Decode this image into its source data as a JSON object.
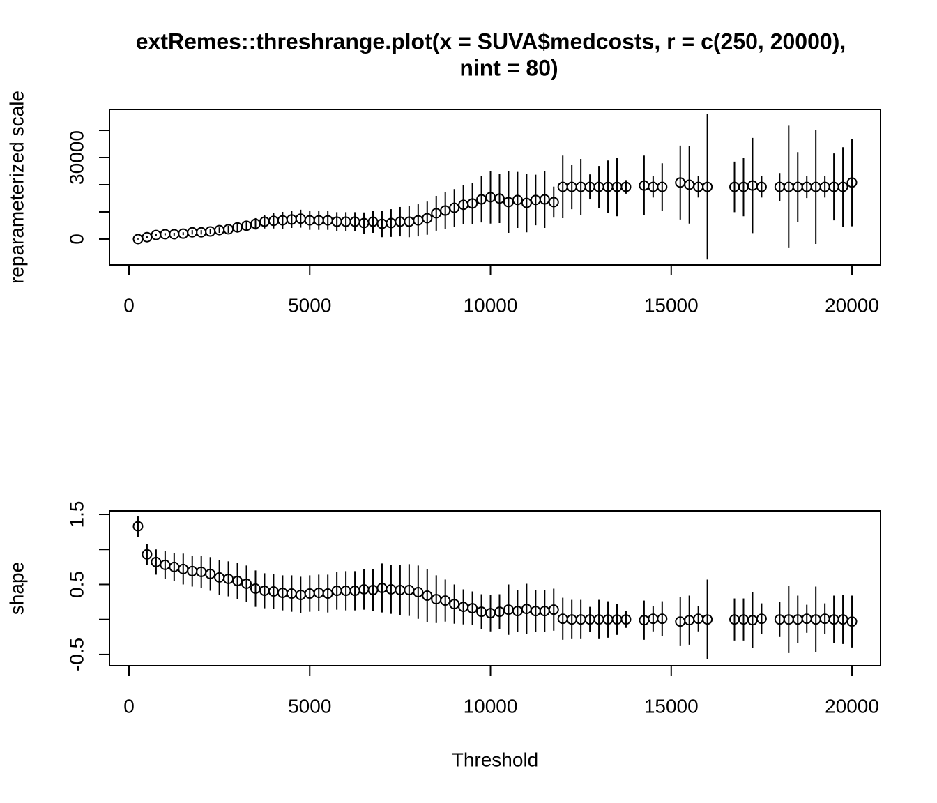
{
  "chart_data": [
    {
      "type": "errorbar",
      "title": [
        "extRemes::threshrange.plot(x = SUVA$medcosts, r = c(250, 20000),",
        "nint = 80)"
      ],
      "ylabel": "reparameterized scale",
      "x": [
        250,
        500,
        750,
        1000,
        1250,
        1500,
        1750,
        2000,
        2250,
        2500,
        2750,
        3000,
        3250,
        3500,
        3750,
        4000,
        4250,
        4500,
        4750,
        5000,
        5250,
        5500,
        5750,
        6000,
        6250,
        6500,
        6750,
        7000,
        7250,
        7500,
        7750,
        8000,
        8250,
        8500,
        8750,
        9000,
        9250,
        9500,
        9750,
        10000,
        10250,
        10500,
        10750,
        11000,
        11250,
        11500,
        11750,
        12000,
        12250,
        12500,
        12750,
        13000,
        13250,
        13500,
        13750,
        14000,
        14250,
        14500,
        14750,
        15000,
        15250,
        15500,
        15750,
        16000,
        16250,
        16500,
        16750,
        17000,
        17250,
        17500,
        17750,
        18000,
        18250,
        18500,
        18750,
        19000,
        19250,
        19500,
        19750,
        20000
      ],
      "values": [
        0,
        700,
        1500,
        1800,
        1800,
        2000,
        2500,
        2500,
        2800,
        3300,
        3600,
        4300,
        4900,
        5600,
        6400,
        6700,
        6900,
        7200,
        7500,
        6900,
        6900,
        6900,
        6400,
        6400,
        6400,
        5900,
        6400,
        5600,
        5900,
        6400,
        6400,
        6900,
        7700,
        9500,
        10500,
        11500,
        12600,
        13100,
        14600,
        15400,
        14900,
        13600,
        14400,
        13300,
        14400,
        14600,
        13600,
        19200,
        19200,
        19200,
        19200,
        19200,
        19200,
        19200,
        19200,
        null,
        19700,
        19200,
        19200,
        null,
        20800,
        20000,
        19200,
        19200,
        null,
        null,
        19200,
        19200,
        19700,
        19200,
        null,
        19200,
        19200,
        19200,
        19200,
        19200,
        19200,
        19200,
        19200,
        20800
      ],
      "errors": [
        200,
        300,
        300,
        400,
        500,
        500,
        800,
        800,
        1000,
        1000,
        1300,
        1500,
        1800,
        2100,
        2500,
        2800,
        3100,
        3100,
        3300,
        3500,
        3500,
        3500,
        3500,
        3500,
        3500,
        3900,
        4100,
        4900,
        5100,
        5400,
        5700,
        5900,
        6100,
        6400,
        6700,
        6900,
        7200,
        7500,
        8500,
        9700,
        9000,
        11300,
        10300,
        10800,
        9300,
        10500,
        5700,
        11500,
        8200,
        10300,
        4600,
        7700,
        9700,
        10800,
        2500,
        null,
        11000,
        3900,
        8700,
        null,
        13600,
        14300,
        3900,
        26700,
        null,
        null,
        9300,
        10800,
        17500,
        3900,
        null,
        5100,
        22500,
        12800,
        4100,
        21000,
        3900,
        12300,
        14600,
        16100
      ],
      "color": "#000000",
      "xlim": [
        -540,
        20790
      ],
      "xticks": [
        0,
        5000,
        10000,
        15000,
        20000
      ],
      "ylim": [
        -9500,
        47700
      ],
      "yticks": [
        0,
        30000
      ],
      "ytick_marks": [
        0,
        10000,
        20000,
        30000,
        40000
      ]
    },
    {
      "type": "errorbar",
      "ylabel": "shape",
      "xlabel": "Threshold",
      "x": [
        250,
        500,
        750,
        1000,
        1250,
        1500,
        1750,
        2000,
        2250,
        2500,
        2750,
        3000,
        3250,
        3500,
        3750,
        4000,
        4250,
        4500,
        4750,
        5000,
        5250,
        5500,
        5750,
        6000,
        6250,
        6500,
        6750,
        7000,
        7250,
        7500,
        7750,
        8000,
        8250,
        8500,
        8750,
        9000,
        9250,
        9500,
        9750,
        10000,
        10250,
        10500,
        10750,
        11000,
        11250,
        11500,
        11750,
        12000,
        12250,
        12500,
        12750,
        13000,
        13250,
        13500,
        13750,
        14000,
        14250,
        14500,
        14750,
        15000,
        15250,
        15500,
        15750,
        16000,
        16250,
        16500,
        16750,
        17000,
        17250,
        17500,
        17750,
        18000,
        18250,
        18500,
        18750,
        19000,
        19250,
        19500,
        19750,
        20000
      ],
      "values": [
        1.33,
        0.93,
        0.82,
        0.78,
        0.75,
        0.72,
        0.69,
        0.68,
        0.65,
        0.6,
        0.58,
        0.55,
        0.51,
        0.44,
        0.41,
        0.4,
        0.38,
        0.37,
        0.35,
        0.37,
        0.38,
        0.37,
        0.41,
        0.41,
        0.41,
        0.43,
        0.42,
        0.45,
        0.43,
        0.42,
        0.42,
        0.39,
        0.34,
        0.29,
        0.27,
        0.22,
        0.18,
        0.16,
        0.11,
        0.09,
        0.11,
        0.14,
        0.12,
        0.15,
        0.12,
        0.12,
        0.14,
        0.01,
        0,
        0,
        0,
        0,
        0,
        0,
        0,
        null,
        -0.01,
        0.01,
        0.01,
        null,
        -0.03,
        -0.01,
        0.01,
        0,
        null,
        null,
        0,
        0,
        -0.01,
        0.01,
        null,
        0,
        0,
        0,
        0.01,
        0,
        0.01,
        0,
        0,
        -0.03
      ],
      "errors": [
        0.15,
        0.15,
        0.18,
        0.2,
        0.2,
        0.22,
        0.22,
        0.23,
        0.24,
        0.25,
        0.25,
        0.26,
        0.26,
        0.26,
        0.25,
        0.25,
        0.25,
        0.26,
        0.26,
        0.26,
        0.26,
        0.27,
        0.27,
        0.28,
        0.28,
        0.29,
        0.3,
        0.35,
        0.35,
        0.36,
        0.37,
        0.38,
        0.38,
        0.34,
        0.3,
        0.28,
        0.25,
        0.24,
        0.25,
        0.26,
        0.25,
        0.36,
        0.3,
        0.36,
        0.3,
        0.3,
        0.3,
        0.3,
        0.28,
        0.28,
        0.18,
        0.28,
        0.26,
        0.22,
        0.12,
        null,
        0.28,
        0.18,
        0.25,
        null,
        0.35,
        0.35,
        0.18,
        0.57,
        null,
        null,
        0.3,
        0.3,
        0.4,
        0.22,
        null,
        0.25,
        0.48,
        0.34,
        0.2,
        0.47,
        0.22,
        0.34,
        0.35,
        0.37
      ],
      "color": "#000000",
      "xlim": [
        -540,
        20790
      ],
      "xticks": [
        0,
        5000,
        10000,
        15000,
        20000
      ],
      "ylim": [
        -0.66,
        1.55
      ],
      "yticks": [
        -0.5,
        0.5,
        1.5
      ],
      "ytick_marks": [
        -0.5,
        0,
        0.5,
        1,
        1.5
      ]
    }
  ]
}
